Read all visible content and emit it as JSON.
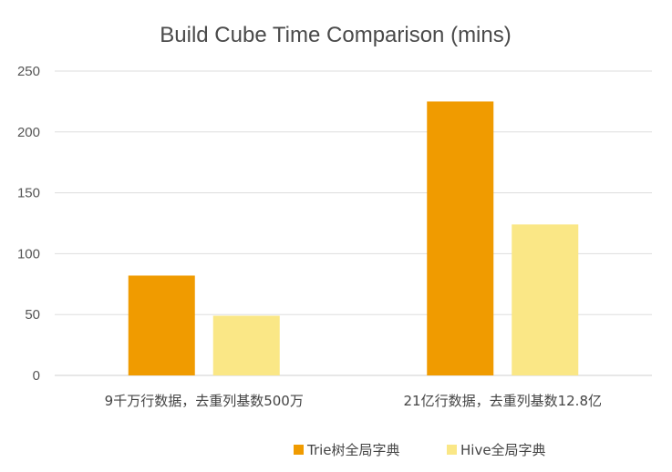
{
  "chart_data": {
    "type": "bar",
    "title": "Build Cube Time Comparison (mins)",
    "categories": [
      "9千万行数据，去重列基数500万",
      "21亿行数据，去重列基数12.8亿"
    ],
    "series": [
      {
        "name": "Trie树全局字典",
        "values": [
          82,
          225
        ],
        "color": "#f09b00"
      },
      {
        "name": "Hive全局字典",
        "values": [
          49,
          124
        ],
        "color": "#fae786"
      }
    ],
    "ylim": [
      0,
      250
    ],
    "yticks": [
      0,
      50,
      100,
      150,
      200,
      250
    ],
    "grid": true,
    "legend": "bottom"
  }
}
